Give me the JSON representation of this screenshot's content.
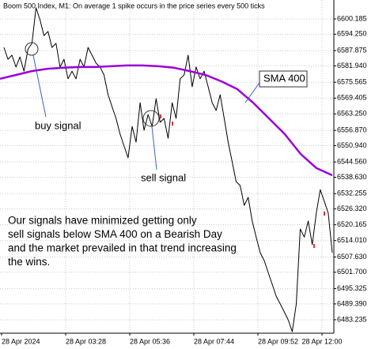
{
  "chart_data": {
    "type": "line",
    "title": "Boom 500 Index, M1:  On average 1 spike occurs in the price series every 500 ticks",
    "x_tick_labels": [
      "28 Apr 2024",
      "28 Apr 03:28",
      "28 Apr 05:36",
      "28 Apr 07:44",
      "28 Apr 09:52",
      "28 Apr 12:00"
    ],
    "series": [
      {
        "color": "#000000",
        "values": [
          6589.1,
          6584.5,
          6586.1,
          6581.5,
          6585.4,
          6579.9,
          6588.5,
          6590.7,
          6604.5,
          6599.9,
          6593.7,
          6595.3,
          6589.1,
          6590.7,
          6581.5,
          6584.5,
          6576.9,
          6579.9,
          6576.9,
          6584.5,
          6581.5,
          6589.1,
          6586.1,
          6583.0,
          6581.5,
          6578.4,
          6570.7,
          6566.1,
          6561.5,
          6555.4,
          6550.8,
          6546.2,
          6558.4,
          6552.3,
          6567.6,
          6556.9,
          6563.0,
          6558.4,
          6569.2,
          6560.0,
          6561.5,
          6553.8,
          6567.6,
          6561.5,
          6576.9,
          6578.4,
          6586.1,
          6573.8,
          6581.5,
          6576.9,
          6579.9,
          6573.8,
          6567.6,
          6564.6,
          6570.7,
          6561.5,
          6552.3,
          6544.6,
          6536.9,
          6535.4,
          6527.7,
          6530.8,
          6521.6,
          6515.4,
          6509.3,
          6506.2,
          6501.6,
          6497.0,
          6492.4,
          6489.4,
          6486.3,
          6483.2,
          6478.6,
          6489.4,
          6518.5,
          6515.4,
          6521.6,
          6512.4,
          6524.7,
          6533.8,
          6529.3,
          6524.7,
          6509.3
        ]
      },
      {
        "name": "SMA 400",
        "color": "#9b00d6",
        "values": [
          6576.9,
          6578.4,
          6579.9,
          6580.8,
          6581.2,
          6581.5,
          6581.5,
          6581.8,
          6582.1,
          6582.1,
          6581.8,
          6581.2,
          6579.9,
          6578.4,
          6575.9,
          6572.9,
          6567.6,
          6561.5,
          6555.4,
          6547.7,
          6542.2,
          6539.4
        ]
      }
    ],
    "ylim": [
      6478.0,
      6607.55
    ],
    "yticks": [
      {
        "value": 6600.185,
        "label": "6600.185"
      },
      {
        "value": 6594.25,
        "label": "6594.250"
      },
      {
        "value": 6587.875,
        "label": "6587.875"
      },
      {
        "value": 6581.94,
        "label": "6581.940"
      },
      {
        "value": 6575.565,
        "label": "6575.565"
      },
      {
        "value": 6569.405,
        "label": "6569.405"
      },
      {
        "value": 6563.25,
        "label": "6563.250"
      },
      {
        "value": 6556.87,
        "label": "6556.870"
      },
      {
        "value": 6550.94,
        "label": "6550.940"
      },
      {
        "value": 6544.56,
        "label": "6544.560"
      },
      {
        "value": 6538.63,
        "label": "6538.630"
      },
      {
        "value": 6532.255,
        "label": "6532.255"
      },
      {
        "value": 6526.32,
        "label": "6526.320"
      },
      {
        "value": 6520.165,
        "label": "6520.165"
      },
      {
        "value": 6514.01,
        "label": "6514.010"
      },
      {
        "value": 6507.63,
        "label": "6507.630"
      },
      {
        "value": 6501.7,
        "label": "6501.700"
      },
      {
        "value": 6495.325,
        "label": "6495.325"
      },
      {
        "value": 6489.39,
        "label": "6489.390"
      },
      {
        "value": 6483.235,
        "label": "6483.235"
      }
    ],
    "grid": true,
    "annotations": {
      "buy_signal": "buy signal",
      "sell_signal": "sell signal",
      "note": [
        "Our signals have minimized getting only",
        "sell signals below SMA 400 on a Bearish Day",
        "and  the market prevailed in that trend increasing",
        "the wins."
      ]
    }
  }
}
